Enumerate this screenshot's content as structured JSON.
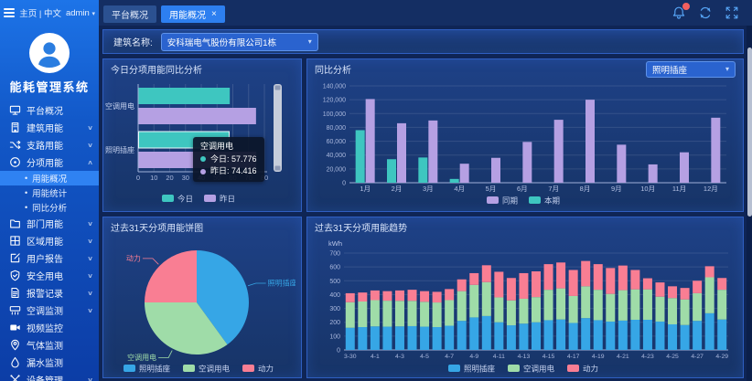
{
  "app": {
    "title": "能耗管理系统"
  },
  "topbar": {
    "home_label": "主页 | 中文",
    "user": "admin",
    "user_caret": "▾",
    "icons": [
      "bell-icon",
      "refresh-icon",
      "fullscreen-icon"
    ],
    "badge_color": "#f25f5f"
  },
  "tabs": [
    {
      "label": "平台概况",
      "active": false
    },
    {
      "label": "用能概况",
      "active": true,
      "close": "×"
    }
  ],
  "filter": {
    "label": "建筑名称:",
    "value": "安科瑞电气股份有限公司1栋"
  },
  "sidebar": {
    "title": "能耗管理系统",
    "items": [
      {
        "label": "平台概况",
        "icon": "monitor-icon"
      },
      {
        "label": "建筑用能",
        "icon": "building-icon",
        "chevron": "down"
      },
      {
        "label": "支路用能",
        "icon": "branch-icon",
        "chevron": "down"
      },
      {
        "label": "分项用能",
        "icon": "target-icon",
        "chevron": "up",
        "expanded": true,
        "children": [
          {
            "label": "用能概况",
            "active": true
          },
          {
            "label": "用能统计",
            "active": false
          },
          {
            "label": "同比分析",
            "active": false
          }
        ]
      },
      {
        "label": "部门用能",
        "icon": "folder-icon",
        "chevron": "down"
      },
      {
        "label": "区域用能",
        "icon": "grid-icon",
        "chevron": "down"
      },
      {
        "label": "用户报告",
        "icon": "edit-icon",
        "chevron": "down"
      },
      {
        "label": "安全用电",
        "icon": "shield-icon",
        "chevron": "down"
      },
      {
        "label": "报警记录",
        "icon": "document-icon",
        "chevron": "down"
      },
      {
        "label": "空调监测",
        "icon": "aircon-icon",
        "chevron": "down"
      },
      {
        "label": "视频监控",
        "icon": "camera-icon"
      },
      {
        "label": "气体监测",
        "icon": "pin-icon"
      },
      {
        "label": "漏水监测",
        "icon": "droplet-icon"
      },
      {
        "label": "设备管理",
        "icon": "tools-icon",
        "chevron": "down"
      }
    ]
  },
  "panels": [
    {
      "title": "今日分项用能同比分析"
    },
    {
      "title": "同比分析",
      "selector": "照明插座"
    },
    {
      "title": "过去31天分项用能饼图"
    },
    {
      "title": "过去31天分项用能趋势"
    }
  ],
  "chart_data": [
    {
      "id": "daily-yoy",
      "type": "bar",
      "orientation": "horizontal",
      "title": "今日分项用能同比分析",
      "categories": [
        "空调用电",
        "照明插座"
      ],
      "series": [
        {
          "name": "今日",
          "color": "#3ec6c0",
          "values": [
            57.776,
            57.4
          ]
        },
        {
          "name": "昨日",
          "color": "#b5a0e3",
          "values": [
            74.416,
            74.6
          ]
        }
      ],
      "xlim": [
        0,
        80
      ],
      "xtick_step": 10,
      "emphasis": {
        "category": 1,
        "series": 0
      },
      "tooltip": {
        "title": "空调用电",
        "rows": [
          {
            "label": "今日",
            "value": "57.776",
            "color": "#3ec6c0"
          },
          {
            "label": "昨日",
            "value": "74.416",
            "color": "#b5a0e3"
          }
        ]
      },
      "legend_position": "bottom"
    },
    {
      "id": "yoy-12m",
      "type": "bar",
      "title": "同比分析",
      "selector_value": "照明插座",
      "categories": [
        "1月",
        "2月",
        "3月",
        "4月",
        "5月",
        "6月",
        "7月",
        "8月",
        "9月",
        "10月",
        "11月",
        "12月"
      ],
      "series": [
        {
          "name": "同期",
          "color": "#b5a0e3",
          "values": [
            121000,
            86000,
            90000,
            27500,
            36000,
            59000,
            91000,
            120000,
            55000,
            26500,
            44000,
            94000
          ]
        },
        {
          "name": "本期",
          "color": "#3ec6c0",
          "values": [
            76000,
            34000,
            36500,
            5500,
            0,
            0,
            0,
            0,
            0,
            0,
            0,
            0
          ]
        }
      ],
      "ylim": [
        0,
        140000
      ],
      "ytick_step": 20000,
      "legend_position": "bottom"
    },
    {
      "id": "pie-31d",
      "type": "pie",
      "title": "过去31天分项用能饼图",
      "slices": [
        {
          "name": "照明插座",
          "value": 40,
          "color": "#36a6e6"
        },
        {
          "name": "空调用电",
          "value": 35,
          "color": "#9fdca8"
        },
        {
          "name": "动力",
          "value": 25,
          "color": "#f97e93"
        }
      ],
      "unit": "%",
      "legend_position": "bottom"
    },
    {
      "id": "trend-31d",
      "type": "stacked-bar",
      "title": "过去31天分项用能趋势",
      "ylabel": "kWh",
      "ylim": [
        0,
        700
      ],
      "ytick_step": 100,
      "categories": [
        "3-30",
        "3-31",
        "4-1",
        "4-2",
        "4-3",
        "4-4",
        "4-5",
        "4-6",
        "4-7",
        "4-8",
        "4-9",
        "4-10",
        "4-11",
        "4-12",
        "4-13",
        "4-14",
        "4-15",
        "4-16",
        "4-17",
        "4-18",
        "4-19",
        "4-20",
        "4-21",
        "4-22",
        "4-23",
        "4-24",
        "4-25",
        "4-26",
        "4-27",
        "4-28",
        "4-29"
      ],
      "series": [
        {
          "name": "照明插座",
          "color": "#36a6e6",
          "values": [
            160,
            165,
            170,
            168,
            170,
            172,
            168,
            165,
            175,
            210,
            235,
            245,
            200,
            178,
            190,
            200,
            215,
            220,
            195,
            230,
            215,
            205,
            212,
            218,
            218,
            205,
            185,
            180,
            210,
            265,
            220
          ]
        },
        {
          "name": "空调用电",
          "color": "#9fdca8",
          "values": [
            185,
            185,
            190,
            188,
            185,
            183,
            180,
            178,
            185,
            215,
            235,
            245,
            180,
            180,
            180,
            182,
            220,
            225,
            195,
            230,
            220,
            200,
            220,
            220,
            220,
            180,
            190,
            185,
            200,
            260,
            215
          ]
        },
        {
          "name": "动力",
          "color": "#f97e93",
          "values": [
            65,
            65,
            70,
            69,
            75,
            80,
            77,
            77,
            80,
            85,
            85,
            122,
            185,
            162,
            185,
            186,
            185,
            187,
            188,
            183,
            185,
            187,
            178,
            140,
            80,
            103,
            85,
            83,
            90,
            80,
            85
          ]
        }
      ],
      "legend_position": "bottom"
    }
  ],
  "colors": {
    "accent": "#2d7ff0",
    "teal": "#3ec6c0",
    "purple": "#b5a0e3",
    "blue": "#36a6e6",
    "green": "#9fdca8",
    "pink": "#f97e93"
  }
}
